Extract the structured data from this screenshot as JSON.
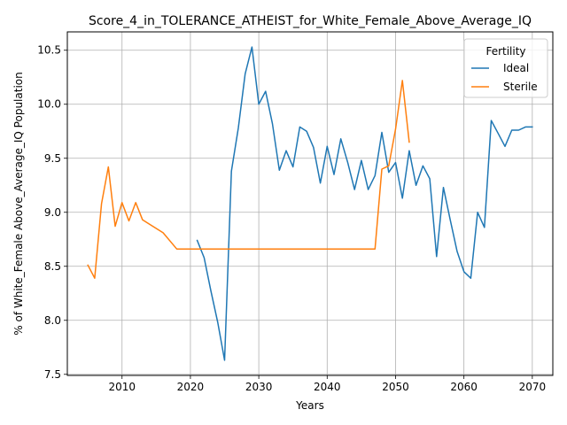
{
  "chart_data": {
    "type": "line",
    "title": "Score_4_in_TOLERANCE_ATHEIST_for_White_Female_Above_Average_IQ",
    "xlabel": "Years",
    "ylabel": "% of White_Female Above_Average_IQ Population",
    "xlim": [
      2002,
      2073
    ],
    "ylim": [
      7.49,
      10.67
    ],
    "x_ticks": [
      2010,
      2020,
      2030,
      2040,
      2050,
      2060,
      2070
    ],
    "y_ticks": [
      7.5,
      8.0,
      8.5,
      9.0,
      9.5,
      10.0,
      10.5
    ],
    "grid": true,
    "legend": {
      "title": "Fertility",
      "placement": "upper-right"
    },
    "series": [
      {
        "name": "Ideal",
        "color": "#1f77b4",
        "points": [
          [
            2021,
            8.74
          ],
          [
            2022,
            8.58
          ],
          [
            2023,
            8.27
          ],
          [
            2024,
            7.98
          ],
          [
            2025,
            7.63
          ],
          [
            2026,
            9.38
          ],
          [
            2027,
            9.78
          ],
          [
            2028,
            10.28
          ],
          [
            2029,
            10.53
          ],
          [
            2030,
            10.0
          ],
          [
            2031,
            10.12
          ],
          [
            2032,
            9.82
          ],
          [
            2033,
            9.39
          ],
          [
            2034,
            9.57
          ],
          [
            2035,
            9.42
          ],
          [
            2036,
            9.79
          ],
          [
            2037,
            9.75
          ],
          [
            2038,
            9.6
          ],
          [
            2039,
            9.27
          ],
          [
            2040,
            9.61
          ],
          [
            2041,
            9.35
          ],
          [
            2042,
            9.68
          ],
          [
            2043,
            9.46
          ],
          [
            2044,
            9.21
          ],
          [
            2045,
            9.48
          ],
          [
            2046,
            9.21
          ],
          [
            2047,
            9.34
          ],
          [
            2048,
            9.74
          ],
          [
            2049,
            9.37
          ],
          [
            2050,
            9.46
          ],
          [
            2051,
            9.13
          ],
          [
            2052,
            9.57
          ],
          [
            2053,
            9.25
          ],
          [
            2054,
            9.43
          ],
          [
            2055,
            9.31
          ],
          [
            2056,
            8.59
          ],
          [
            2057,
            9.23
          ],
          [
            2058,
            8.93
          ],
          [
            2059,
            8.64
          ],
          [
            2060,
            8.45
          ],
          [
            2061,
            8.39
          ],
          [
            2062,
            9.0
          ],
          [
            2063,
            8.86
          ],
          [
            2064,
            9.85
          ],
          [
            2065,
            9.73
          ],
          [
            2066,
            9.61
          ],
          [
            2067,
            9.76
          ],
          [
            2068,
            9.76
          ],
          [
            2069,
            9.79
          ],
          [
            2070,
            9.79
          ]
        ]
      },
      {
        "name": "Sterile",
        "color": "#ff7f0e",
        "points": [
          [
            2005,
            8.51
          ],
          [
            2006,
            8.39
          ],
          [
            2007,
            9.08
          ],
          [
            2008,
            9.42
          ],
          [
            2009,
            8.87
          ],
          [
            2010,
            9.09
          ],
          [
            2011,
            8.92
          ],
          [
            2012,
            9.09
          ],
          [
            2013,
            8.93
          ],
          [
            2016,
            8.81
          ],
          [
            2018,
            8.66
          ],
          [
            2047,
            8.66
          ],
          [
            2048,
            9.4
          ],
          [
            2049,
            9.43
          ],
          [
            2050,
            9.77
          ],
          [
            2051,
            10.22
          ],
          [
            2052,
            9.65
          ]
        ]
      }
    ]
  }
}
